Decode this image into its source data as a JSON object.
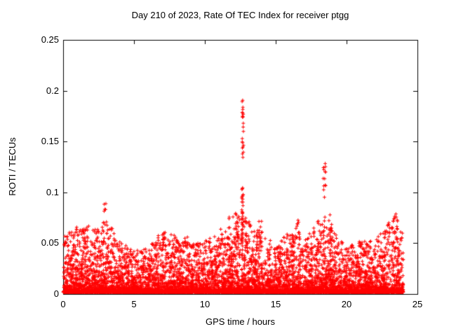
{
  "chart_data": {
    "type": "scatter",
    "title": "Day 210 of 2023, Rate Of TEC Index for receiver ptgg",
    "xlabel": "GPS time / hours",
    "ylabel": "ROTI / TECUs",
    "xlim": [
      0,
      25
    ],
    "ylim": [
      0,
      0.25
    ],
    "x_ticks": [
      0,
      5,
      10,
      15,
      20,
      25
    ],
    "x_tick_labels": [
      "0",
      "5",
      "10",
      "15",
      "20",
      "25"
    ],
    "y_ticks": [
      0,
      0.05,
      0.1,
      0.15,
      0.2,
      0.25
    ],
    "y_tick_labels": [
      "0",
      "0.05",
      "0.1",
      "0.15",
      "0.2",
      "0.25"
    ],
    "grid": false,
    "legend": "none",
    "marker": "+",
    "marker_color": "#ff0000",
    "border_color": "#000000",
    "x_data_range": [
      0,
      24
    ],
    "dense_band": {
      "y_floor": 0.002,
      "point_count": 9000,
      "hourly_max": [
        0.055,
        0.065,
        0.06,
        0.07,
        0.05,
        0.04,
        0.045,
        0.06,
        0.055,
        0.05,
        0.05,
        0.06,
        0.08,
        0.07,
        0.06,
        0.045,
        0.06,
        0.05,
        0.07,
        0.06,
        0.045,
        0.05,
        0.05,
        0.07,
        0.06
      ]
    },
    "spike_clusters": [
      {
        "x": 0.15,
        "ymin": 0.045,
        "ymax": 0.057,
        "count": 6,
        "spread": 0.2
      },
      {
        "x": 1.6,
        "ymin": 0.05,
        "ymax": 0.067,
        "count": 8,
        "spread": 0.5
      },
      {
        "x": 2.95,
        "ymin": 0.07,
        "ymax": 0.09,
        "count": 5,
        "spread": 0.15
      },
      {
        "x": 3.5,
        "ymin": 0.05,
        "ymax": 0.066,
        "count": 5,
        "spread": 0.3
      },
      {
        "x": 7.0,
        "ymin": 0.045,
        "ymax": 0.06,
        "count": 8,
        "spread": 0.6
      },
      {
        "x": 8.6,
        "ymin": 0.045,
        "ymax": 0.058,
        "count": 6,
        "spread": 0.4
      },
      {
        "x": 9.3,
        "ymin": 0.045,
        "ymax": 0.056,
        "count": 5,
        "spread": 0.3
      },
      {
        "x": 11.4,
        "ymin": 0.045,
        "ymax": 0.06,
        "count": 8,
        "spread": 0.5
      },
      {
        "x": 12.3,
        "ymin": 0.05,
        "ymax": 0.08,
        "count": 15,
        "spread": 0.3
      },
      {
        "x": 12.65,
        "ymin": 0.05,
        "ymax": 0.105,
        "count": 35,
        "spread": 0.12
      },
      {
        "x": 12.68,
        "ymin": 0.13,
        "ymax": 0.205,
        "count": 22,
        "spread": 0.1
      },
      {
        "x": 13.0,
        "ymin": 0.05,
        "ymax": 0.075,
        "count": 10,
        "spread": 0.3
      },
      {
        "x": 13.9,
        "ymin": 0.05,
        "ymax": 0.075,
        "count": 8,
        "spread": 0.3
      },
      {
        "x": 16.55,
        "ymin": 0.055,
        "ymax": 0.073,
        "count": 10,
        "spread": 0.25
      },
      {
        "x": 18.45,
        "ymin": 0.07,
        "ymax": 0.133,
        "count": 16,
        "spread": 0.2
      },
      {
        "x": 18.8,
        "ymin": 0.05,
        "ymax": 0.08,
        "count": 10,
        "spread": 0.3
      },
      {
        "x": 21.2,
        "ymin": 0.04,
        "ymax": 0.052,
        "count": 6,
        "spread": 0.4
      },
      {
        "x": 23.45,
        "ymin": 0.05,
        "ymax": 0.09,
        "count": 14,
        "spread": 0.35
      }
    ]
  }
}
